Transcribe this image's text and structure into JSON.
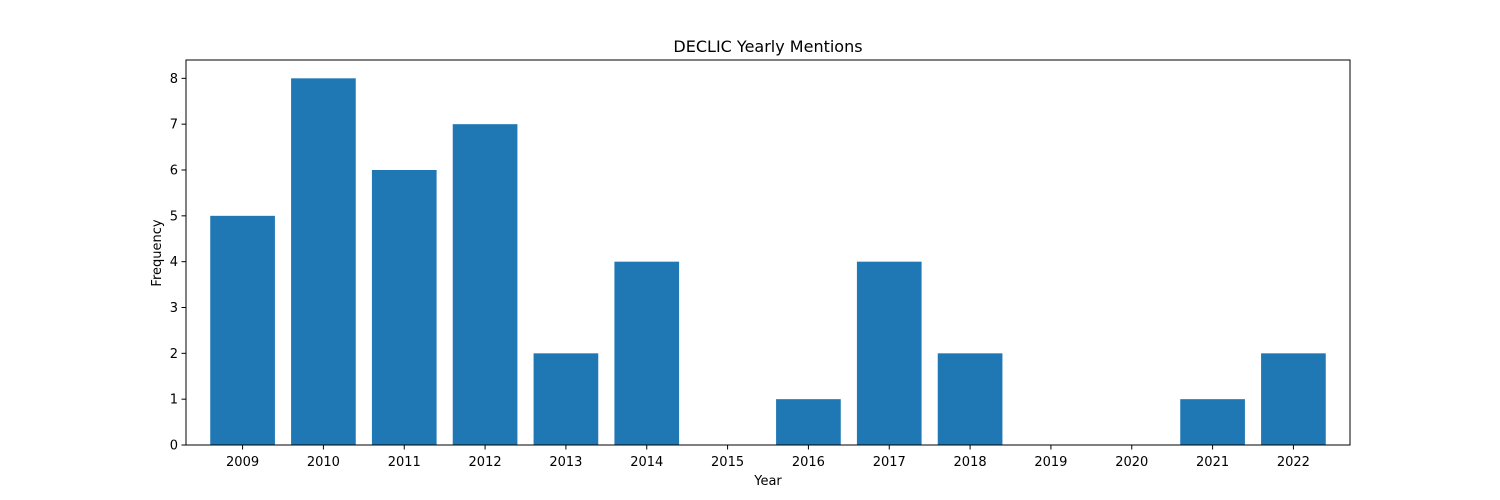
{
  "chart_data": {
    "type": "bar",
    "title": "DECLIC Yearly Mentions",
    "xlabel": "Year",
    "ylabel": "Frequency",
    "categories": [
      "2009",
      "2010",
      "2011",
      "2012",
      "2013",
      "2014",
      "2015",
      "2016",
      "2017",
      "2018",
      "2019",
      "2020",
      "2021",
      "2022"
    ],
    "values": [
      5,
      8,
      6,
      7,
      2,
      4,
      0,
      1,
      4,
      2,
      0,
      0,
      1,
      2
    ],
    "ylim": [
      0,
      8.4
    ],
    "yticks": [
      "0",
      "1",
      "2",
      "3",
      "4",
      "5",
      "6",
      "7",
      "8"
    ],
    "grid": false,
    "bar_color": "#1f77b4"
  }
}
